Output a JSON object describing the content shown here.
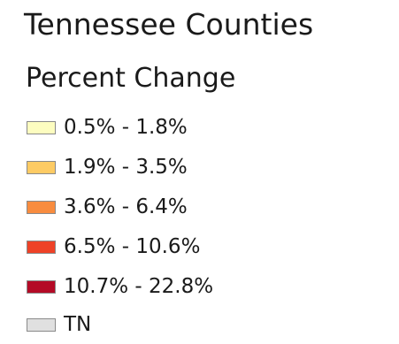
{
  "legend": {
    "title": "Tennessee Counties",
    "subtitle": "Percent Change",
    "items": [
      {
        "label": "0.5% - 1.8%",
        "color": "#fdfdc0"
      },
      {
        "label": "1.9% - 3.5%",
        "color": "#fdcb64"
      },
      {
        "label": "3.6% - 6.4%",
        "color": "#f88c3f"
      },
      {
        "label": "6.5% - 10.6%",
        "color": "#ee4227"
      },
      {
        "label": "10.7% - 22.8%",
        "color": "#b40a26"
      },
      {
        "label": "TN",
        "color": "#e0e0e0"
      }
    ]
  }
}
